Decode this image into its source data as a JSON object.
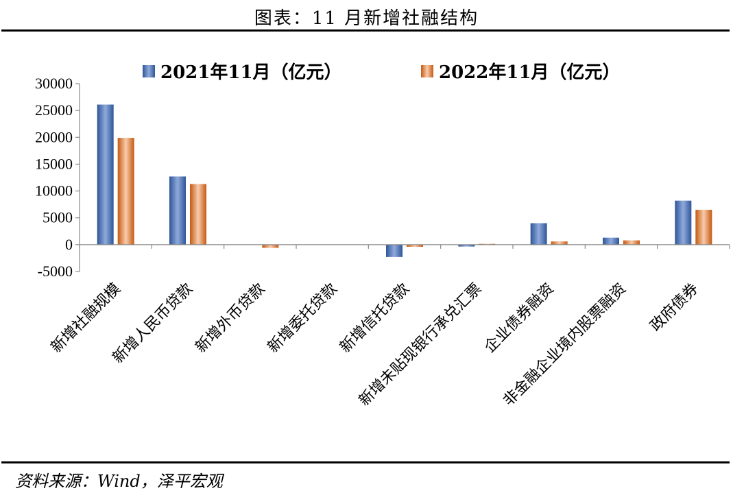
{
  "header": {
    "title": "图表：11 月新增社融结构"
  },
  "footer": {
    "source": "资料来源：Wind，泽平宏观"
  },
  "chart_data": {
    "type": "bar",
    "title": "图表：11 月新增社融结构",
    "xlabel": "",
    "ylabel": "",
    "ylim": [
      -5000,
      30000
    ],
    "yticks": [
      -5000,
      0,
      5000,
      10000,
      15000,
      20000,
      25000,
      30000
    ],
    "ytick_labels": [
      "-5000",
      "0",
      "5000",
      "10000",
      "15000",
      "20000",
      "25000",
      "30000"
    ],
    "legend_position": "top",
    "grid": false,
    "categories": [
      "新增社融规模",
      "新增人民币贷款",
      "新增外币贷款",
      "新增委托贷款",
      "新增信托贷款",
      "新增未贴现银行承兑汇票",
      "企业债券融资",
      "非金融企业境内股票融资",
      "政府债券"
    ],
    "series": [
      {
        "name": "2021年11月（亿元）",
        "color": "#4472C4",
        "values": [
          26100,
          12700,
          0,
          -50,
          -2300,
          -350,
          4000,
          1300,
          8200
        ]
      },
      {
        "name": "2022年11月（亿元）",
        "color": "#ED7D31",
        "values": [
          19900,
          11300,
          -600,
          -50,
          -400,
          150,
          600,
          800,
          6500
        ]
      }
    ]
  }
}
